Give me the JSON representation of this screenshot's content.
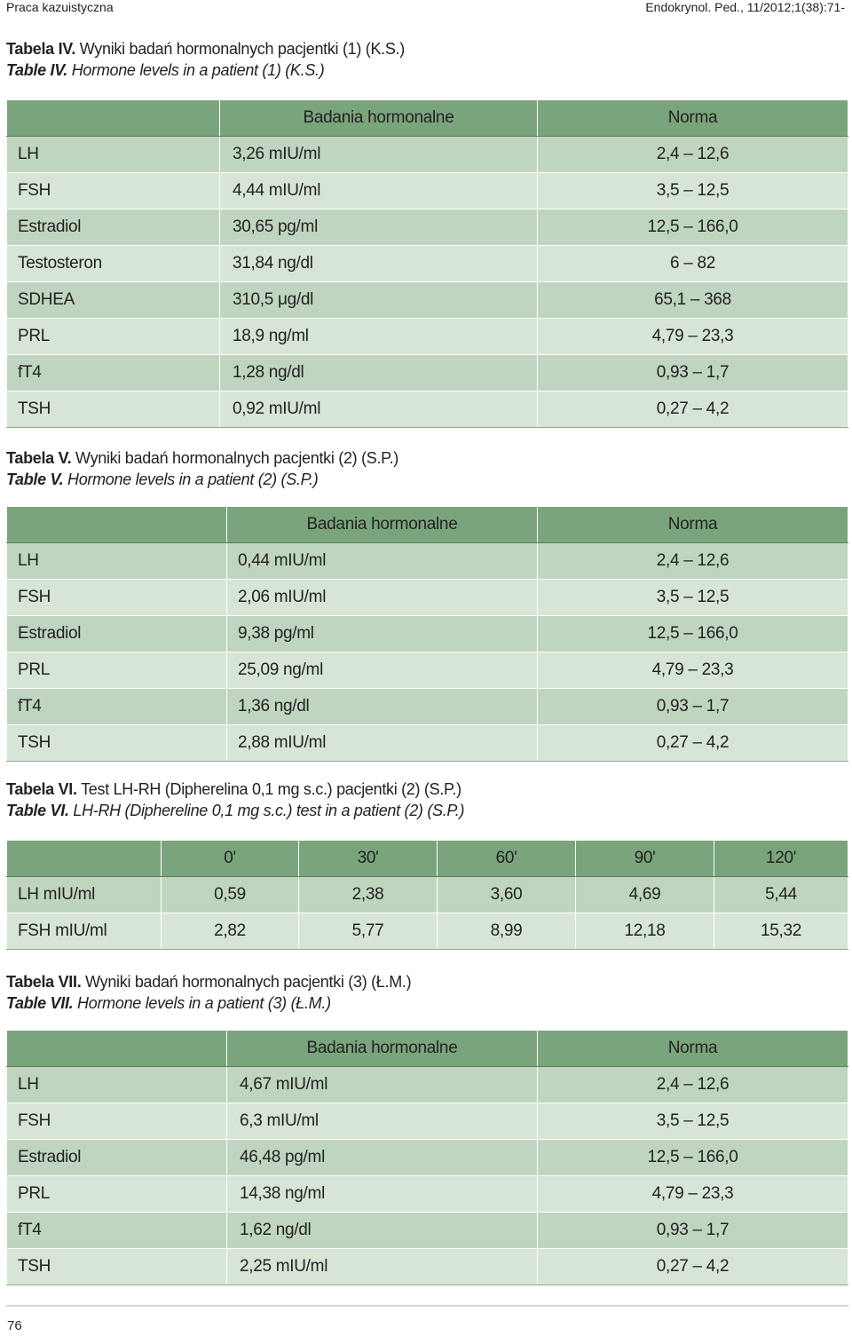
{
  "header": {
    "section": "Praca kazuistyczna",
    "journal": "Endokrynol. Ped., 11/2012;1(38):71-"
  },
  "tables": [
    {
      "caption_pl_label": "Tabela IV.",
      "caption_pl": " Wyniki badań hormonalnych pacjentki (1) (K.S.)",
      "caption_en_label": "Table IV.",
      "caption_en": " Hormone levels in a patient (1) (K.S.)",
      "header": [
        "",
        "Badania hormonalne",
        "Norma"
      ],
      "rows": [
        [
          "LH",
          "3,26 mIU/ml",
          "2,4 – 12,6"
        ],
        [
          "FSH",
          "4,44 mIU/ml",
          "3,5 – 12,5"
        ],
        [
          "Estradiol",
          "30,65 pg/ml",
          "12,5 – 166,0"
        ],
        [
          "Testosteron",
          "31,84 ng/dl",
          "6 – 82"
        ],
        [
          "SDHEA",
          "310,5 μg/dl",
          "65,1 – 368"
        ],
        [
          "PRL",
          "18,9 ng/ml",
          "4,79 – 23,3"
        ],
        [
          "fT4",
          "1,28 ng/dl",
          "0,93 – 1,7"
        ],
        [
          "TSH",
          "0,92 mIU/ml",
          "0,27 – 4,2"
        ]
      ]
    },
    {
      "caption_pl_label": "Tabela V.",
      "caption_pl": " Wyniki badań hormonalnych pacjentki (2) (S.P.)",
      "caption_en_label": "Table V.",
      "caption_en": " Hormone levels in a patient (2) (S.P.)",
      "header": [
        "",
        "Badania hormonalne",
        "Norma"
      ],
      "rows": [
        [
          "LH",
          "0,44 mIU/ml",
          "2,4 – 12,6"
        ],
        [
          "FSH",
          "2,06 mIU/ml",
          "3,5 – 12,5"
        ],
        [
          "Estradiol",
          "9,38 pg/ml",
          "12,5 – 166,0"
        ],
        [
          "PRL",
          "25,09 ng/ml",
          "4,79 – 23,3"
        ],
        [
          "fT4",
          "1,36 ng/dl",
          "0,93 – 1,7"
        ],
        [
          "TSH",
          "2,88 mIU/ml",
          "0,27 – 4,2"
        ]
      ]
    },
    {
      "caption_pl_label": "Tabela VI.",
      "caption_pl": " Test LH-RH (Dipherelina 0,1 mg s.c.) pacjentki (2) (S.P.)",
      "caption_en_label": "Table VI.",
      "caption_en": " LH-RH (Diphereline 0,1 mg s.c.) test in a patient (2) (S.P.)",
      "header": [
        "",
        "0'",
        "30'",
        "60'",
        "90'",
        "120'"
      ],
      "rows": [
        [
          "LH mIU/ml",
          "0,59",
          "2,38",
          "3,60",
          "4,69",
          "5,44"
        ],
        [
          "FSH mIU/ml",
          "2,82",
          "5,77",
          "8,99",
          "12,18",
          "15,32"
        ]
      ]
    },
    {
      "caption_pl_label": "Tabela VII.",
      "caption_pl": " Wyniki badań hormonalnych pacjentki (3) (Ł.M.)",
      "caption_en_label": "Table VII.",
      "caption_en": " Hormone levels in a patient (3) (Ł.M.)",
      "header": [
        "",
        "Badania hormonalne",
        "Norma"
      ],
      "rows": [
        [
          "LH",
          "4,67 mIU/ml",
          "2,4 – 12,6"
        ],
        [
          "FSH",
          "6,3 mIU/ml",
          "3,5 – 12,5"
        ],
        [
          "Estradiol",
          "46,48 pg/ml",
          "12,5 – 166,0"
        ],
        [
          "PRL",
          "14,38 ng/ml",
          "4,79 – 23,3"
        ],
        [
          "fT4",
          "1,62 ng/dl",
          "0,93 – 1,7"
        ],
        [
          "TSH",
          "2,25 mIU/ml",
          "0,27 – 4,2"
        ]
      ]
    }
  ],
  "footer": {
    "page_number": "76"
  }
}
